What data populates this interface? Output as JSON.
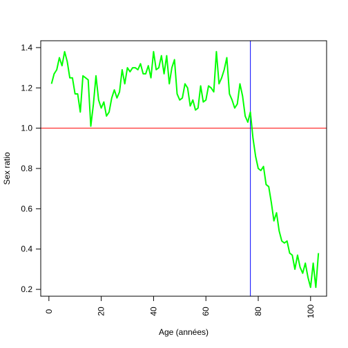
{
  "chart_data": {
    "type": "line",
    "title": "",
    "xlabel": "Age (années)",
    "ylabel": "Sex ratio",
    "xlim": [
      -3.12,
      106.12
    ],
    "ylim": [
      0.166,
      1.434
    ],
    "x_ticks": [
      0,
      20,
      40,
      60,
      80,
      100
    ],
    "x_tick_labels": [
      "0",
      "20",
      "40",
      "60",
      "80",
      "100"
    ],
    "y_ticks": [
      0.2,
      0.4,
      0.6,
      0.8,
      1.0,
      1.2,
      1.4
    ],
    "y_tick_labels": [
      "0.2",
      "0.4",
      "0.6",
      "0.8",
      "1.0",
      "1.2",
      "1.4"
    ],
    "grid": false,
    "series": [
      {
        "color": "#00ff00",
        "x": [
          1,
          2,
          3,
          4,
          5,
          6,
          7,
          8,
          9,
          10,
          11,
          12,
          13,
          14,
          15,
          16,
          17,
          18,
          19,
          20,
          21,
          22,
          23,
          24,
          25,
          26,
          27,
          28,
          29,
          30,
          31,
          32,
          33,
          34,
          35,
          36,
          37,
          38,
          39,
          40,
          41,
          42,
          43,
          44,
          45,
          46,
          47,
          48,
          49,
          50,
          51,
          52,
          53,
          54,
          55,
          56,
          57,
          58,
          59,
          60,
          61,
          62,
          63,
          64,
          65,
          66,
          67,
          68,
          69,
          70,
          71,
          72,
          73,
          74,
          75,
          76,
          77,
          78,
          79,
          80,
          81,
          82,
          83,
          84,
          85,
          86,
          87,
          88,
          89,
          90,
          91,
          92,
          93,
          94,
          95,
          96,
          97,
          98,
          99,
          100,
          101,
          102,
          103
        ],
        "y": [
          1.22,
          1.27,
          1.29,
          1.35,
          1.31,
          1.38,
          1.33,
          1.25,
          1.25,
          1.17,
          1.17,
          1.08,
          1.26,
          1.25,
          1.24,
          1.01,
          1.12,
          1.26,
          1.14,
          1.1,
          1.13,
          1.06,
          1.08,
          1.15,
          1.19,
          1.15,
          1.18,
          1.29,
          1.22,
          1.3,
          1.28,
          1.3,
          1.3,
          1.29,
          1.32,
          1.27,
          1.27,
          1.31,
          1.25,
          1.38,
          1.29,
          1.3,
          1.36,
          1.27,
          1.36,
          1.22,
          1.3,
          1.34,
          1.17,
          1.14,
          1.15,
          1.22,
          1.2,
          1.11,
          1.14,
          1.09,
          1.1,
          1.21,
          1.13,
          1.14,
          1.21,
          1.2,
          1.18,
          1.38,
          1.22,
          1.25,
          1.29,
          1.35,
          1.17,
          1.14,
          1.1,
          1.12,
          1.22,
          1.16,
          1.06,
          1.03,
          1.08,
          0.95,
          0.86,
          0.8,
          0.79,
          0.81,
          0.72,
          0.71,
          0.63,
          0.54,
          0.58,
          0.49,
          0.44,
          0.43,
          0.44,
          0.38,
          0.37,
          0.3,
          0.37,
          0.31,
          0.28,
          0.33,
          0.26,
          0.21,
          0.33,
          0.21,
          0.38
        ]
      }
    ],
    "hlines": [
      {
        "y": 1.0,
        "color": "#ff0000"
      }
    ],
    "vlines": [
      {
        "x": 77,
        "color": "#0000ff"
      }
    ]
  }
}
